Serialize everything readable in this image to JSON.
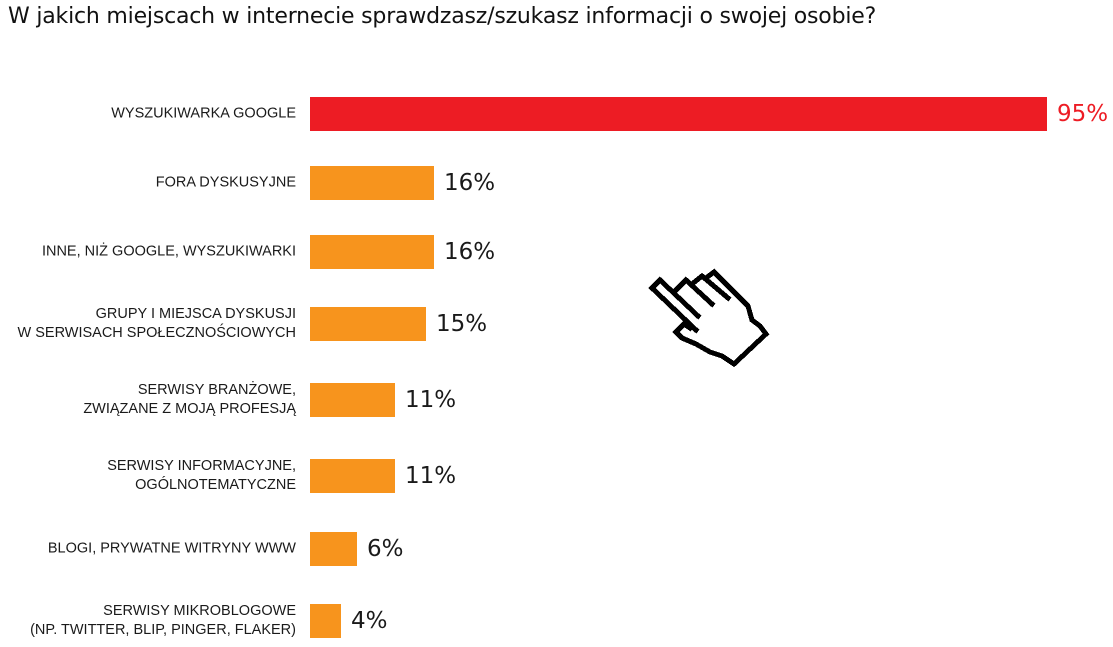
{
  "title": "W jakich miejscach w internecie sprawdzasz/szukasz informacji o swojej osobie?",
  "colors": {
    "highlight": "#ED1C24",
    "default": "#F7941D",
    "highlight_text": "#ED1C24",
    "text": "#1a1a1a"
  },
  "decoration": {
    "icon": "pixel-hand-pointer-icon"
  },
  "chart_data": {
    "type": "bar",
    "orientation": "horizontal",
    "title": "W jakich miejscach w internecie sprawdzasz/szukasz informacji o swojej osobie?",
    "xlabel": "",
    "ylabel": "",
    "unit": "%",
    "xlim": [
      0,
      100
    ],
    "grid": false,
    "legend": null,
    "categories": [
      "WYSZUKIWARKA GOOGLE",
      "FORA DYSKUSYJNE",
      "INNE, NIŻ GOOGLE, WYSZUKIWARKI",
      "GRUPY I MIEJSCA DYSKUSJI W SERWISACH SPOŁECZNOŚCIOWYCH",
      "SERWISY BRANŻOWE, ZWIĄZANE Z MOJĄ PROFESJĄ",
      "SERWISY INFORMACYJNE, OGÓLNOTEMATYCZNE",
      "BLOGI, PRYWATNE WITRYNY WWW",
      "SERWISY MIKROBLOGOWE (NP. TWITTER, BLIP, PINGER, FLAKER)"
    ],
    "values": [
      95,
      16,
      16,
      15,
      11,
      11,
      6,
      4
    ],
    "rows": [
      {
        "line1": "WYSZUKIWARKA GOOGLE",
        "line2": "",
        "value": 95,
        "label": "95%",
        "highlight": true
      },
      {
        "line1": "FORA DYSKUSYJNE",
        "line2": "",
        "value": 16,
        "label": "16%",
        "highlight": false
      },
      {
        "line1": "INNE, NIŻ GOOGLE, WYSZUKIWARKI",
        "line2": "",
        "value": 16,
        "label": "16%",
        "highlight": false
      },
      {
        "line1": "GRUPY I MIEJSCA DYSKUSJI",
        "line2": "W SERWISACH SPOŁECZNOŚCIOWYCH",
        "value": 15,
        "label": "15%",
        "highlight": false
      },
      {
        "line1": "SERWISY BRANŻOWE,",
        "line2": "ZWIĄZANE Z MOJĄ PROFESJĄ",
        "value": 11,
        "label": "11%",
        "highlight": false
      },
      {
        "line1": "SERWISY INFORMACYJNE,",
        "line2": "OGÓLNOTEMATYCZNE",
        "value": 11,
        "label": "11%",
        "highlight": false
      },
      {
        "line1": "BLOGI, PRYWATNE WITRYNY WWW",
        "line2": "",
        "value": 6,
        "label": "6%",
        "highlight": false
      },
      {
        "line1": "SERWISY MIKROBLOGOWE",
        "line2": "(NP. TWITTER, BLIP, PINGER, FLAKER)",
        "value": 4,
        "label": "4%",
        "highlight": false
      }
    ]
  }
}
